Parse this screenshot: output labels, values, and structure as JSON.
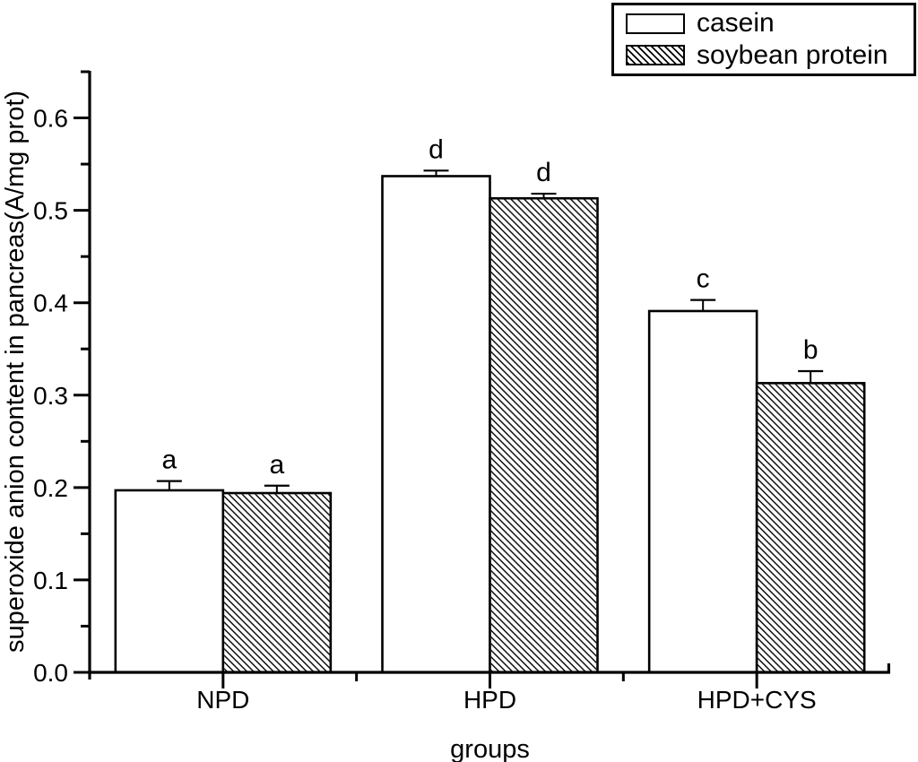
{
  "chart_data": {
    "type": "bar",
    "title": "",
    "xlabel": "groups",
    "ylabel": "superoxide anion content in pancreas(A/mg prot)",
    "categories": [
      "NPD",
      "HPD",
      "HPD+CYS"
    ],
    "series": [
      {
        "name": "casein",
        "pattern": "solid-white",
        "values": [
          0.197,
          0.537,
          0.391
        ],
        "errors": [
          0.01,
          0.006,
          0.012
        ],
        "sig_labels": [
          "a",
          "d",
          "c"
        ]
      },
      {
        "name": "soybean protein",
        "pattern": "diagonal-hatch",
        "values": [
          0.194,
          0.513,
          0.313
        ],
        "errors": [
          0.008,
          0.005,
          0.013
        ],
        "sig_labels": [
          "a",
          "d",
          "b"
        ]
      }
    ],
    "ylim": [
      0,
      0.65
    ],
    "yticks_major": [
      0.0,
      0.1,
      0.2,
      0.3,
      0.4,
      0.5,
      0.6
    ],
    "ytick_labels": [
      "0.0",
      "0.1",
      "0.2",
      "0.3",
      "0.4",
      "0.5",
      "0.6"
    ],
    "yticks_minor": [
      0.05,
      0.15,
      0.25,
      0.35,
      0.45,
      0.55,
      0.65
    ],
    "grid": false,
    "error_bars": "upper-cap-only",
    "legend": {
      "position": "top-right",
      "entries": [
        "casein",
        "soybean protein"
      ]
    },
    "colors": {
      "axis": "#000000",
      "text": "#000000",
      "bar_fill": "#ffffff",
      "bar_border": "#000000",
      "hatch": "#000000",
      "background": "#ffffff"
    }
  }
}
